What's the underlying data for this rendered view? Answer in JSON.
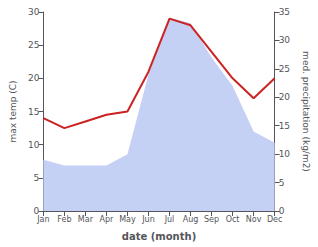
{
  "chart_data": {
    "type": "line",
    "xlabel": "date (month)",
    "ylabel": "max temp (C)",
    "y2label": "med. precipitation (kg/m2)",
    "categories": [
      "Jan",
      "Feb",
      "Mar",
      "Apr",
      "May",
      "Jun",
      "Jul",
      "Aug",
      "Sep",
      "Oct",
      "Nov",
      "Dec"
    ],
    "series": [
      {
        "type": "area",
        "axis": "y2",
        "color": "#c5d0f5",
        "values": [
          9.0,
          8.0,
          8.0,
          8.0,
          10.0,
          24.0,
          34.0,
          33.0,
          27.0,
          22.0,
          14.0,
          12.0
        ]
      },
      {
        "type": "line",
        "color": "#cc2222",
        "values": [
          14.0,
          12.5,
          13.5,
          14.5,
          15.0,
          21.0,
          29.0,
          28.0,
          24.0,
          20.0,
          17.0,
          20.0
        ]
      }
    ],
    "ylim": [
      0,
      30
    ],
    "yticks": [
      0,
      5,
      10,
      15,
      20,
      25,
      30
    ],
    "y2lim": [
      0,
      35
    ],
    "y2ticks": [
      0,
      5,
      10,
      15,
      20,
      25,
      30,
      35
    ],
    "grid": false
  }
}
